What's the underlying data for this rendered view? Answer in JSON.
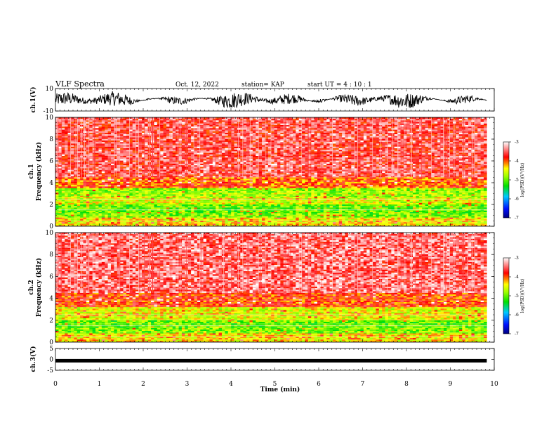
{
  "header": {
    "title": "VLF Spectra",
    "date": "Oct. 12, 2022",
    "station": "station= KAP",
    "start": "start  UT  =   4  : 10 : 1"
  },
  "chart_data": [
    {
      "type": "line",
      "name": "ch1-waveform",
      "ylabel": "ch.1(V)",
      "ylim": [
        -10,
        10
      ],
      "yticks": [
        "10",
        "-10"
      ],
      "xlim": [
        0,
        10
      ],
      "data_extent_min": 9.83,
      "description_values": "dense oscillating waveform roughly between -6 and 8 V"
    },
    {
      "type": "heatmap",
      "name": "ch1-spectrogram",
      "ylabel": "ch.1\nFrequency  (kHz)",
      "ylabel_lines": [
        "ch.1",
        "Frequency  (kHz)"
      ],
      "ylim": [
        0,
        10
      ],
      "yticks": [
        "0",
        "2",
        "4",
        "6",
        "8",
        "10"
      ],
      "xlim": [
        0,
        10
      ],
      "colorbar": {
        "label": "log(PSD)(V²/Hz)",
        "ticks": [
          "-3",
          "-4",
          "-5",
          "-6",
          "-7"
        ],
        "range": [
          -7,
          -3
        ]
      },
      "bands_khz": [
        {
          "from": 0,
          "to": 0.8,
          "level": -4.4
        },
        {
          "from": 0.8,
          "to": 1.2,
          "level": -4.9
        },
        {
          "from": 1.2,
          "to": 2.0,
          "level": -5.0
        },
        {
          "from": 2.0,
          "to": 2.7,
          "level": -4.6
        },
        {
          "from": 2.7,
          "to": 3.5,
          "level": -4.8
        },
        {
          "from": 3.5,
          "to": 4.5,
          "level": -4.0
        },
        {
          "from": 4.5,
          "to": 10,
          "level": -3.6
        }
      ]
    },
    {
      "type": "heatmap",
      "name": "ch2-spectrogram",
      "ylabel_lines": [
        "ch.2",
        "Frequency  (kHz)"
      ],
      "ylim": [
        0,
        10
      ],
      "yticks": [
        "0",
        "2",
        "4",
        "6",
        "8",
        "10"
      ],
      "xlim": [
        0,
        10
      ],
      "colorbar": {
        "label": "log(PSD)(V²/Hz)",
        "ticks": [
          "-3",
          "-4",
          "-5",
          "-6",
          "-7"
        ],
        "range": [
          -7,
          -3
        ]
      },
      "bands_khz": [
        {
          "from": 0,
          "to": 0.8,
          "level": -4.4
        },
        {
          "from": 0.8,
          "to": 1.3,
          "level": -4.9
        },
        {
          "from": 1.3,
          "to": 2.0,
          "level": -5.0
        },
        {
          "from": 2.0,
          "to": 3.2,
          "level": -4.5
        },
        {
          "from": 3.2,
          "to": 4.5,
          "level": -3.9
        },
        {
          "from": 4.5,
          "to": 10,
          "level": -3.5
        }
      ]
    },
    {
      "type": "line",
      "name": "ch3-waveform",
      "ylabel": "ch.3(V)",
      "ylim": [
        -5,
        5
      ],
      "yticks": [
        "5",
        "0",
        "-5"
      ],
      "xlim": [
        0,
        10
      ],
      "xlabel": "Time  (min)",
      "xticks": [
        "0",
        "1",
        "2",
        "3",
        "4",
        "5",
        "6",
        "7",
        "8",
        "9",
        "10"
      ],
      "level_v": -0.6
    }
  ]
}
